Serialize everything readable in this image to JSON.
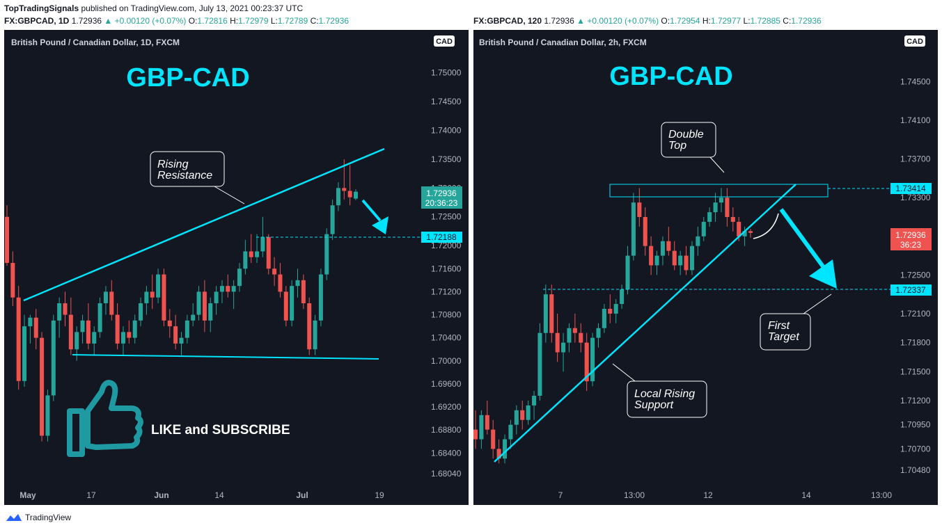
{
  "header": {
    "author": "TopTradingSignals",
    "published": "published on TradingView.com, July 13, 2021 00:23:37 UTC"
  },
  "legend_left": {
    "symbol": "FX:GBPCAD, 1D",
    "last": "1.72936",
    "change": "▲ +0.00120 (+0.07%)",
    "o": "1.72816",
    "h": "1.72979",
    "l": "1.72789",
    "c": "1.72936"
  },
  "legend_right": {
    "symbol": "FX:GBPCAD, 120",
    "last": "1.72936",
    "change": "▲ +0.00120 (+0.07%)",
    "o": "1.72954",
    "h": "1.72977",
    "l": "1.72885",
    "c": "1.72936"
  },
  "footer": {
    "brand": "TradingView"
  },
  "colors": {
    "bg": "#131722",
    "up": "#26a69a",
    "down": "#ef5350",
    "accent": "#00e5ff",
    "grid": "#2a2e39"
  },
  "chart_data": [
    {
      "type": "candlestick",
      "instrument": "British Pound / Canadian Dollar, 1D, FXCM",
      "currency_badge": "CAD",
      "overlay_title": "GBP-CAD",
      "ylim": [
        1.678,
        1.756
      ],
      "y_ticks": [
        "1.75000",
        "1.74500",
        "1.74000",
        "1.73500",
        "1.73000",
        "1.72500",
        "1.72000",
        "1.71600",
        "1.71200",
        "1.70800",
        "1.70400",
        "1.70000",
        "1.69600",
        "1.69200",
        "1.68800",
        "1.68400",
        "1.68040"
      ],
      "x_ticks": [
        "May",
        "17",
        "Jun",
        "14",
        "Jul",
        "19"
      ],
      "price_labels": [
        {
          "value": "1.72936",
          "sub": "20:36:23",
          "kind": "last"
        },
        {
          "value": "1.72188",
          "kind": "level"
        }
      ],
      "annotations": [
        {
          "text": "Rising\nResistance",
          "kind": "callout"
        },
        {
          "text": "LIKE and SUBSCRIBE",
          "kind": "promo"
        }
      ],
      "series": [
        [
          1.725,
          1.727,
          1.7165,
          1.717
        ],
        [
          1.717,
          1.719,
          1.7095,
          1.711
        ],
        [
          1.711,
          1.713,
          1.695,
          1.6965
        ],
        [
          1.6965,
          1.708,
          1.6955,
          1.706
        ],
        [
          1.706,
          1.708,
          1.703,
          1.7075
        ],
        [
          1.7075,
          1.709,
          1.702,
          1.704
        ],
        [
          1.704,
          1.705,
          1.686,
          1.687
        ],
        [
          1.687,
          1.695,
          1.686,
          1.694
        ],
        [
          1.694,
          1.708,
          1.693,
          1.707
        ],
        [
          1.707,
          1.711,
          1.704,
          1.71
        ],
        [
          1.71,
          1.712,
          1.706,
          1.708
        ],
        [
          1.708,
          1.711,
          1.701,
          1.702
        ],
        [
          1.702,
          1.706,
          1.7,
          1.705
        ],
        [
          1.705,
          1.708,
          1.703,
          1.707
        ],
        [
          1.707,
          1.71,
          1.702,
          1.703
        ],
        [
          1.703,
          1.706,
          1.701,
          1.705
        ],
        [
          1.705,
          1.711,
          1.704,
          1.71
        ],
        [
          1.71,
          1.713,
          1.708,
          1.712
        ],
        [
          1.712,
          1.714,
          1.707,
          1.708
        ],
        [
          1.708,
          1.71,
          1.702,
          1.703
        ],
        [
          1.703,
          1.706,
          1.701,
          1.705
        ],
        [
          1.705,
          1.707,
          1.703,
          1.704
        ],
        [
          1.704,
          1.708,
          1.703,
          1.707
        ],
        [
          1.707,
          1.711,
          1.706,
          1.71
        ],
        [
          1.71,
          1.713,
          1.708,
          1.712
        ],
        [
          1.712,
          1.715,
          1.709,
          1.711
        ],
        [
          1.711,
          1.716,
          1.71,
          1.715
        ],
        [
          1.715,
          1.716,
          1.706,
          1.707
        ],
        [
          1.707,
          1.709,
          1.704,
          1.706
        ],
        [
          1.706,
          1.708,
          1.702,
          1.703
        ],
        [
          1.703,
          1.705,
          1.701,
          1.704
        ],
        [
          1.704,
          1.708,
          1.703,
          1.707
        ],
        [
          1.707,
          1.71,
          1.706,
          1.708
        ],
        [
          1.708,
          1.713,
          1.707,
          1.712
        ],
        [
          1.712,
          1.714,
          1.705,
          1.707
        ],
        [
          1.707,
          1.711,
          1.705,
          1.71
        ],
        [
          1.71,
          1.713,
          1.708,
          1.712
        ],
        [
          1.712,
          1.714,
          1.71,
          1.713
        ],
        [
          1.713,
          1.715,
          1.711,
          1.712
        ],
        [
          1.712,
          1.714,
          1.709,
          1.713
        ],
        [
          1.713,
          1.717,
          1.712,
          1.716
        ],
        [
          1.716,
          1.721,
          1.715,
          1.719
        ],
        [
          1.719,
          1.722,
          1.717,
          1.718
        ],
        [
          1.718,
          1.722,
          1.717,
          1.719
        ],
        [
          1.719,
          1.725,
          1.718,
          1.7215
        ],
        [
          1.7215,
          1.722,
          1.715,
          1.716
        ],
        [
          1.716,
          1.718,
          1.713,
          1.715
        ],
        [
          1.715,
          1.717,
          1.711,
          1.712
        ],
        [
          1.712,
          1.713,
          1.706,
          1.707
        ],
        [
          1.707,
          1.714,
          1.706,
          1.713
        ],
        [
          1.713,
          1.716,
          1.711,
          1.714
        ],
        [
          1.714,
          1.715,
          1.709,
          1.71
        ],
        [
          1.71,
          1.711,
          1.701,
          1.702
        ],
        [
          1.702,
          1.708,
          1.701,
          1.707
        ],
        [
          1.707,
          1.716,
          1.706,
          1.715
        ],
        [
          1.715,
          1.723,
          1.714,
          1.722
        ],
        [
          1.722,
          1.728,
          1.721,
          1.727
        ],
        [
          1.727,
          1.731,
          1.726,
          1.73
        ],
        [
          1.73,
          1.735,
          1.728,
          1.7295
        ],
        [
          1.7295,
          1.734,
          1.727,
          1.7284
        ],
        [
          1.72816,
          1.72979,
          1.72789,
          1.72936
        ]
      ]
    },
    {
      "type": "candlestick",
      "instrument": "British Pound / Canadian Dollar, 2h, FXCM",
      "currency_badge": "CAD",
      "overlay_title": "GBP-CAD",
      "ylim": [
        1.703,
        1.7495
      ],
      "y_ticks": [
        "1.74500",
        "1.74100",
        "1.73700",
        "1.73300",
        "1.72500",
        "1.72100",
        "1.71800",
        "1.71500",
        "1.71200",
        "1.70950",
        "1.70700",
        "1.70480"
      ],
      "x_ticks": [
        "7",
        "13:00",
        "12",
        "14",
        "13:00"
      ],
      "price_labels": [
        {
          "value": "1.73414",
          "kind": "level"
        },
        {
          "value": "1.72936",
          "sub": "36:23",
          "kind": "last"
        },
        {
          "value": "1.72337",
          "kind": "level"
        }
      ],
      "annotations": [
        {
          "text": "Double\nTop",
          "kind": "callout"
        },
        {
          "text": "First\nTarget",
          "kind": "callout"
        },
        {
          "text": "Local Rising\nSupport",
          "kind": "callout"
        }
      ],
      "series": [
        [
          1.709,
          1.711,
          1.707,
          1.708
        ],
        [
          1.708,
          1.711,
          1.707,
          1.7105
        ],
        [
          1.7105,
          1.712,
          1.7085,
          1.709
        ],
        [
          1.709,
          1.71,
          1.706,
          1.707
        ],
        [
          1.707,
          1.708,
          1.7055,
          1.706
        ],
        [
          1.706,
          1.7085,
          1.7055,
          1.708
        ],
        [
          1.708,
          1.71,
          1.707,
          1.7095
        ],
        [
          1.7095,
          1.7115,
          1.7085,
          1.711
        ],
        [
          1.711,
          1.712,
          1.709,
          1.71
        ],
        [
          1.71,
          1.712,
          1.7095,
          1.7115
        ],
        [
          1.7115,
          1.713,
          1.71,
          1.7125
        ],
        [
          1.7125,
          1.72,
          1.712,
          1.719
        ],
        [
          1.719,
          1.724,
          1.718,
          1.723
        ],
        [
          1.723,
          1.724,
          1.718,
          1.719
        ],
        [
          1.719,
          1.721,
          1.716,
          1.717
        ],
        [
          1.717,
          1.719,
          1.715,
          1.718
        ],
        [
          1.718,
          1.72,
          1.717,
          1.7195
        ],
        [
          1.7195,
          1.721,
          1.718,
          1.719
        ],
        [
          1.719,
          1.72,
          1.717,
          1.718
        ],
        [
          1.718,
          1.719,
          1.713,
          1.714
        ],
        [
          1.714,
          1.719,
          1.7135,
          1.7185
        ],
        [
          1.7185,
          1.72,
          1.7175,
          1.7195
        ],
        [
          1.7195,
          1.722,
          1.719,
          1.7215
        ],
        [
          1.7215,
          1.723,
          1.72,
          1.721
        ],
        [
          1.721,
          1.7225,
          1.72,
          1.722
        ],
        [
          1.722,
          1.724,
          1.7215,
          1.7235
        ],
        [
          1.7235,
          1.728,
          1.723,
          1.727
        ],
        [
          1.727,
          1.7335,
          1.7265,
          1.7325
        ],
        [
          1.7325,
          1.734,
          1.73,
          1.731
        ],
        [
          1.731,
          1.732,
          1.727,
          1.728
        ],
        [
          1.728,
          1.729,
          1.725,
          1.726
        ],
        [
          1.726,
          1.7275,
          1.725,
          1.727
        ],
        [
          1.727,
          1.729,
          1.726,
          1.7285
        ],
        [
          1.7285,
          1.73,
          1.727,
          1.7275
        ],
        [
          1.7275,
          1.7285,
          1.7255,
          1.726
        ],
        [
          1.726,
          1.7275,
          1.725,
          1.727
        ],
        [
          1.727,
          1.728,
          1.725,
          1.7255
        ],
        [
          1.7255,
          1.7285,
          1.725,
          1.728
        ],
        [
          1.728,
          1.73,
          1.727,
          1.729
        ],
        [
          1.729,
          1.731,
          1.7285,
          1.7305
        ],
        [
          1.7305,
          1.732,
          1.73,
          1.7315
        ],
        [
          1.7315,
          1.7335,
          1.7305,
          1.7325
        ],
        [
          1.7325,
          1.734,
          1.7315,
          1.733
        ],
        [
          1.733,
          1.734,
          1.73,
          1.731
        ],
        [
          1.731,
          1.732,
          1.7295,
          1.7305
        ],
        [
          1.7305,
          1.731,
          1.7285,
          1.729
        ],
        [
          1.729,
          1.73,
          1.728,
          1.72954
        ],
        [
          1.72954,
          1.72977,
          1.72885,
          1.72936
        ]
      ]
    }
  ]
}
